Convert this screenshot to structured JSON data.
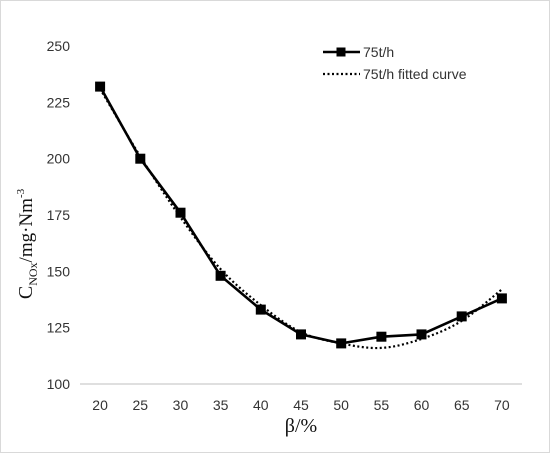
{
  "chart_data": {
    "type": "line",
    "x": [
      20,
      25,
      30,
      35,
      40,
      45,
      50,
      55,
      60,
      65,
      70
    ],
    "series": [
      {
        "name": "75t/h",
        "values": [
          232,
          200,
          176,
          148,
          133,
          122,
          118,
          121,
          122,
          130,
          138
        ],
        "color": "#000000",
        "style": "solid",
        "marker": "square"
      },
      {
        "name": "75t/h fitted curve",
        "values": [
          231,
          201,
          174,
          151,
          135,
          123,
          118,
          116,
          120,
          128,
          142
        ],
        "color": "#000000",
        "style": "dotted",
        "marker": "none"
      }
    ],
    "xlabel": "β/%",
    "ylabel": {
      "main": "C",
      "subscript": "NOx",
      "unit": "/mg·Nm",
      "superscript": "-3"
    },
    "xlim": [
      17.5,
      72.5
    ],
    "ylim": [
      100,
      250
    ],
    "xticks": [
      "20",
      "25",
      "30",
      "35",
      "40",
      "45",
      "50",
      "55",
      "60",
      "65",
      "70"
    ],
    "yticks": [
      "100",
      "125",
      "150",
      "175",
      "200",
      "225",
      "250"
    ],
    "grid": false,
    "legend_position": "top-right"
  }
}
